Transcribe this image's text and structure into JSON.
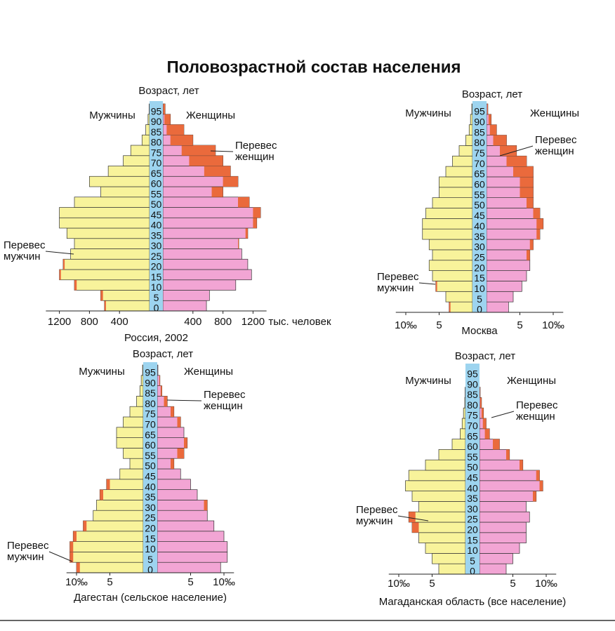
{
  "title": "Половозрастной состав населения",
  "chart_data": [
    {
      "type": "pyramid",
      "caption": "Россия, 2002",
      "y_label": "Возраст, лет",
      "x_unit": "тыс. человек",
      "categories": [
        "0",
        "5",
        "10",
        "15",
        "20",
        "25",
        "30",
        "35",
        "40",
        "45",
        "50",
        "55",
        "60",
        "65",
        "70",
        "75",
        "80",
        "85",
        "90",
        "95"
      ],
      "series": [
        {
          "name": "Мужчины",
          "color": "#f8f39b",
          "values": [
            600,
            650,
            1000,
            1200,
            1150,
            1050,
            1000,
            1100,
            1200,
            1200,
            1000,
            650,
            800,
            550,
            350,
            250,
            100,
            50,
            20,
            5
          ]
        },
        {
          "name": "Женщины",
          "color": "#f2a5d4",
          "values": [
            580,
            620,
            970,
            1180,
            1130,
            1050,
            1010,
            1130,
            1250,
            1300,
            1150,
            800,
            1000,
            900,
            800,
            700,
            400,
            280,
            100,
            30
          ]
        }
      ],
      "excess_color": "#ea6a3c",
      "annotations": [
        [
          "Перевес",
          "женщин"
        ],
        [
          "Перевес",
          "мужчин"
        ]
      ],
      "xticks": [
        400,
        800,
        1200
      ]
    },
    {
      "type": "pyramid",
      "caption": "Москва",
      "y_label": "Возраст, лет",
      "categories": [
        "0",
        "5",
        "10",
        "15",
        "20",
        "25",
        "30",
        "35",
        "40",
        "45",
        "50",
        "55",
        "60",
        "65",
        "70",
        "75",
        "80",
        "85",
        "90",
        "95"
      ],
      "series": [
        {
          "name": "Мужчины",
          "color": "#f8f39b",
          "values": [
            3.5,
            4,
            5.5,
            6,
            6.5,
            6,
            6.5,
            7.5,
            7.5,
            7,
            6,
            5,
            5,
            4,
            3,
            2,
            1,
            0.5,
            0.3,
            0.1
          ]
        },
        {
          "name": "Женщины",
          "color": "#f2a5d4",
          "values": [
            3.3,
            4,
            5.3,
            6,
            6.5,
            6.5,
            7,
            8,
            8.5,
            8,
            7,
            7,
            7,
            7,
            6,
            4.5,
            3,
            1.5,
            0.7,
            0.2
          ]
        }
      ],
      "excess_color": "#ea6a3c",
      "annotations": [
        [
          "Перевес",
          "женщин"
        ],
        [
          "Перевес",
          "мужчин"
        ]
      ],
      "xticks": [
        5,
        {
          "value": 10,
          "label": "10‰"
        }
      ]
    },
    {
      "type": "pyramid",
      "caption": "Дагестан (сельское население)",
      "y_label": "Возраст, лет",
      "categories": [
        "0",
        "5",
        "10",
        "15",
        "20",
        "25",
        "30",
        "35",
        "40",
        "45",
        "50",
        "55",
        "60",
        "65",
        "70",
        "75",
        "80",
        "85",
        "90",
        "95"
      ],
      "series": [
        {
          "name": "Мужчины",
          "color": "#f8f39b",
          "values": [
            10,
            11,
            11,
            10.5,
            9,
            7.5,
            7,
            6.5,
            5.5,
            3.5,
            2,
            3,
            4,
            4,
            3,
            2,
            1,
            0.5,
            0.3,
            0.1
          ]
        },
        {
          "name": "Женщины",
          "color": "#f2a5d4",
          "values": [
            9.5,
            10.5,
            10.5,
            10,
            8.5,
            7.5,
            7.5,
            6,
            5,
            3.5,
            2.5,
            4,
            4.5,
            4,
            3.5,
            2.5,
            1.5,
            0.7,
            0.4,
            0.1
          ]
        }
      ],
      "excess_color": "#ea6a3c",
      "annotations": [
        [
          "Перевес",
          "женщин"
        ],
        [
          "Перевес",
          "мужчин"
        ]
      ],
      "xticks": [
        5,
        {
          "value": 10,
          "label": "10‰"
        }
      ]
    },
    {
      "type": "pyramid",
      "caption": "Магаданская область (все население)",
      "y_label": "Возраст, лет",
      "categories": [
        "0",
        "5",
        "10",
        "15",
        "20",
        "25",
        "30",
        "35",
        "40",
        "45",
        "50",
        "55",
        "60",
        "65",
        "70",
        "75",
        "80",
        "85",
        "90",
        "95"
      ],
      "series": [
        {
          "name": "Мужчины",
          "color": "#f8f39b",
          "values": [
            4,
            5,
            6,
            7,
            8,
            8.5,
            7,
            8,
            9,
            8.5,
            6,
            4,
            2,
            0.8,
            0.5,
            0.3,
            0.1,
            0.05,
            0,
            0
          ]
        },
        {
          "name": "Женщины",
          "color": "#f2a5d4",
          "values": [
            4,
            5,
            6,
            7,
            7,
            7.5,
            7,
            8.5,
            9.5,
            9,
            6.5,
            4.5,
            3,
            1.5,
            1,
            0.6,
            0.3,
            0.1,
            0,
            0
          ]
        }
      ],
      "excess_color": "#ea6a3c",
      "annotations": [
        [
          "Перевес",
          "женщин"
        ],
        [
          "Перевес",
          "мужчин"
        ]
      ],
      "xticks": [
        5,
        {
          "value": 10,
          "label": "10‰"
        }
      ]
    }
  ]
}
